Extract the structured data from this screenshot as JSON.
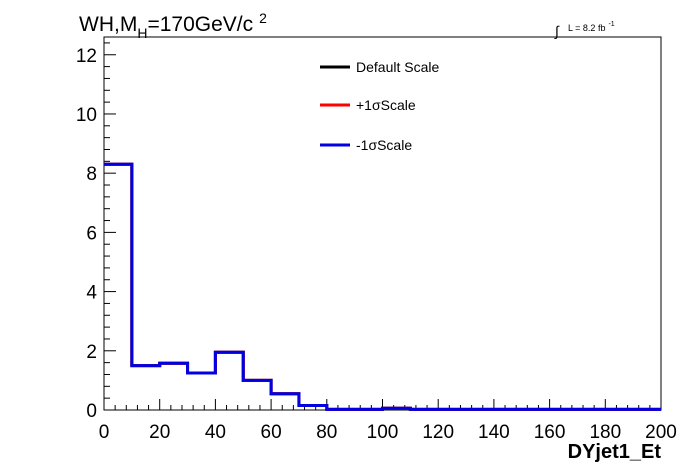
{
  "chart_data": {
    "type": "line",
    "title": "WH,M",
    "title_subscript": "H",
    "title_rest": "=170GeV/c",
    "title_superscript": "2",
    "lumi_text": "L = 8.2 fb",
    "lumi_superscript": "-1",
    "lumi_integral_symbol": "∫",
    "xlabel": "DYjet1_Et",
    "ylabel": "",
    "xlim": [
      0,
      200
    ],
    "ylim": [
      0,
      12.6
    ],
    "xticks": [
      "0",
      "20",
      "40",
      "60",
      "80",
      "100",
      "120",
      "140",
      "160",
      "180",
      "200"
    ],
    "yticks": [
      "0",
      "2",
      "4",
      "6",
      "8",
      "10",
      "12"
    ],
    "bin_edges": [
      0,
      10,
      20,
      30,
      40,
      50,
      60,
      70,
      80,
      90,
      100,
      110,
      120,
      130,
      140,
      150,
      160,
      170,
      180,
      190,
      200
    ],
    "series": [
      {
        "name": "Default Scale",
        "color": "#000000",
        "values": [
          8.3,
          1.5,
          1.58,
          1.25,
          1.95,
          1.0,
          0.55,
          0.15,
          0.02,
          0.02,
          0.06,
          0.02,
          0.02,
          0.02,
          0.02,
          0.02,
          0.02,
          0.02,
          0.02,
          0.02
        ]
      },
      {
        "name": "+1σScale",
        "color": "#ff0000",
        "values": [
          8.3,
          1.5,
          1.58,
          1.25,
          1.95,
          1.0,
          0.55,
          0.15,
          0.02,
          0.02,
          0.06,
          0.02,
          0.02,
          0.02,
          0.02,
          0.02,
          0.02,
          0.02,
          0.02,
          0.02
        ]
      },
      {
        "name": "-1σScale",
        "color": "#0000e0",
        "values": [
          8.3,
          1.5,
          1.58,
          1.25,
          1.95,
          1.0,
          0.55,
          0.15,
          0.02,
          0.02,
          0.06,
          0.02,
          0.02,
          0.02,
          0.02,
          0.02,
          0.02,
          0.02,
          0.02,
          0.02
        ]
      }
    ],
    "legend_position": "top-center",
    "grid": false
  }
}
